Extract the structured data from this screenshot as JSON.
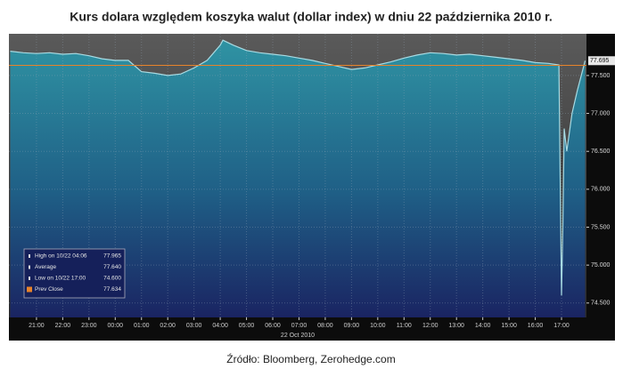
{
  "chart_data": {
    "type": "area",
    "title": "Kurs dolara względem koszyka walut (dollar index) w dniu 22 października 2010 r.",
    "x_label": "22 Oct 2010",
    "source": "Źródło: Bloomberg, Zerohedge.com",
    "x": [
      20.0,
      20.5,
      21.0,
      21.5,
      22.0,
      22.5,
      23.0,
      23.5,
      24.0,
      24.5,
      25.0,
      25.5,
      26.0,
      26.5,
      27.0,
      27.5,
      28.0,
      28.1,
      28.5,
      29.0,
      29.5,
      30.0,
      30.5,
      31.0,
      31.5,
      32.0,
      32.5,
      33.0,
      33.5,
      34.0,
      34.5,
      35.0,
      35.5,
      36.0,
      36.5,
      37.0,
      37.5,
      38.0,
      38.5,
      39.0,
      39.5,
      40.0,
      40.5,
      40.9,
      41.0,
      41.05,
      41.1,
      41.2,
      41.4,
      41.6,
      41.9
    ],
    "series": [
      {
        "color": "#a8dbe3",
        "values": [
          77.82,
          77.8,
          77.79,
          77.8,
          77.78,
          77.79,
          77.76,
          77.72,
          77.7,
          77.7,
          77.55,
          77.53,
          77.5,
          77.52,
          77.6,
          77.7,
          77.9,
          77.965,
          77.9,
          77.83,
          77.8,
          77.78,
          77.76,
          77.73,
          77.7,
          77.66,
          77.62,
          77.58,
          77.6,
          77.64,
          77.68,
          77.73,
          77.77,
          77.8,
          77.79,
          77.77,
          77.78,
          77.76,
          77.74,
          77.72,
          77.7,
          77.67,
          77.66,
          77.64,
          74.6,
          75.5,
          76.8,
          76.5,
          77.0,
          77.3,
          77.695
        ]
      }
    ],
    "current_value_label": "77.695",
    "xlim": [
      19.95,
      41.95
    ],
    "ylim": [
      74.31,
      78.05
    ],
    "xticks": [
      {
        "value": 21,
        "label": "21:00"
      },
      {
        "value": 22,
        "label": "22:00"
      },
      {
        "value": 23,
        "label": "23:00"
      },
      {
        "value": 24,
        "label": "00:00"
      },
      {
        "value": 25,
        "label": "01:00"
      },
      {
        "value": 26,
        "label": "02:00"
      },
      {
        "value": 27,
        "label": "03:00"
      },
      {
        "value": 28,
        "label": "04:00"
      },
      {
        "value": 29,
        "label": "05:00"
      },
      {
        "value": 30,
        "label": "06:00"
      },
      {
        "value": 31,
        "label": "07:00"
      },
      {
        "value": 32,
        "label": "08:00"
      },
      {
        "value": 33,
        "label": "09:00"
      },
      {
        "value": 34,
        "label": "10:00"
      },
      {
        "value": 35,
        "label": "11:00"
      },
      {
        "value": 36,
        "label": "12:00"
      },
      {
        "value": 37,
        "label": "13:00"
      },
      {
        "value": 38,
        "label": "14:00"
      },
      {
        "value": 39,
        "label": "15:00"
      },
      {
        "value": 40,
        "label": "16:00"
      },
      {
        "value": 41,
        "label": "17:00"
      }
    ],
    "yticks": [
      {
        "value": 77.5,
        "label": "77.500"
      },
      {
        "value": 77.0,
        "label": "77.000"
      },
      {
        "value": 76.5,
        "label": "76.500"
      },
      {
        "value": 76.0,
        "label": "76.000"
      },
      {
        "value": 75.5,
        "label": "75.500"
      },
      {
        "value": 75.0,
        "label": "75.000"
      },
      {
        "value": 74.5,
        "label": "74.500"
      }
    ],
    "grid": true,
    "stats": [
      {
        "label": "High on 10/22 04:06",
        "value": 77.965,
        "value_label": "77.965"
      },
      {
        "label": "Average",
        "value": 77.64,
        "value_label": "77.640"
      },
      {
        "label": "Low on 10/22 17:00",
        "value": 74.6,
        "value_label": "74.600"
      },
      {
        "label": "Prev Close",
        "value": 77.634,
        "value_label": "77.634",
        "color": "#e8832a"
      }
    ]
  }
}
